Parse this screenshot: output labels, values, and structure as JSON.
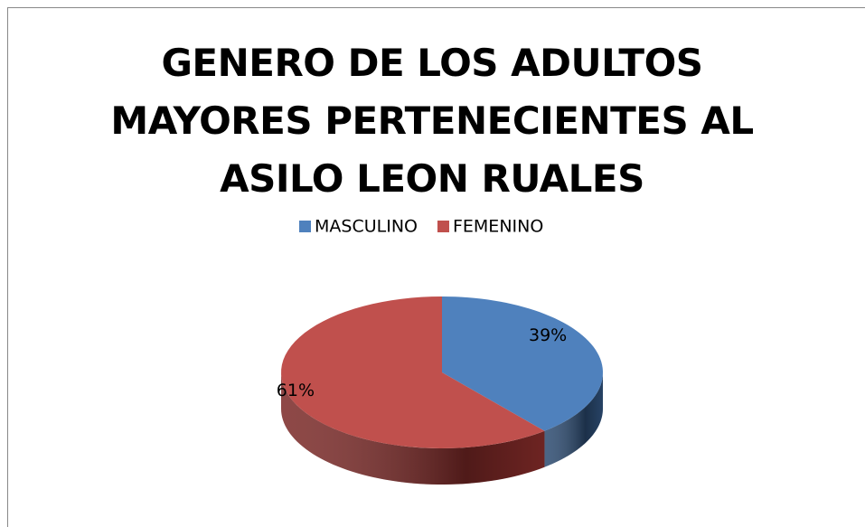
{
  "chart_data": {
    "type": "pie",
    "title": "GENERO DE LOS ADULTOS MAYORES PERTENECIENTES AL ASILO LEON RUALES",
    "categories": [
      "MASCULINO",
      "FEMENINO"
    ],
    "values": [
      39,
      61
    ],
    "value_labels": [
      "39%",
      "61%"
    ],
    "colors": [
      "#4f81bd",
      "#c0504d"
    ],
    "side_colors": [
      "#2b4a70",
      "#7a2826"
    ],
    "legend": "top"
  }
}
